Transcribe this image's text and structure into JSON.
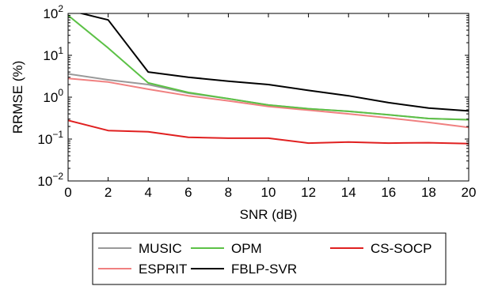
{
  "chart_data": {
    "type": "line",
    "title": "",
    "xlabel": "SNR (dB)",
    "ylabel": "RRMSE (%)",
    "x": [
      0,
      2,
      4,
      6,
      8,
      10,
      12,
      14,
      16,
      18,
      20
    ],
    "xlim": [
      0,
      20
    ],
    "ylim": [
      0.01,
      100
    ],
    "yscale": "log",
    "xticks": [
      "0",
      "2",
      "4",
      "6",
      "8",
      "10",
      "12",
      "14",
      "16",
      "18",
      "20"
    ],
    "yticks": [
      {
        "value": 0.01,
        "base": "10",
        "exp": "−2"
      },
      {
        "value": 0.1,
        "base": "10",
        "exp": "−1"
      },
      {
        "value": 1,
        "base": "10",
        "exp": "0"
      },
      {
        "value": 10,
        "base": "10",
        "exp": "1"
      },
      {
        "value": 100,
        "base": "10",
        "exp": "2"
      }
    ],
    "grid": false,
    "legend_position": "bottom",
    "series": [
      {
        "name": "MUSIC",
        "color": "#999999",
        "values": [
          3.6,
          2.6,
          2.0,
          1.25,
          0.92,
          0.65,
          0.53,
          0.46,
          0.38,
          0.31,
          0.29
        ]
      },
      {
        "name": "ESPRIT",
        "color": "#f08080",
        "values": [
          2.8,
          2.3,
          1.55,
          1.08,
          0.82,
          0.6,
          0.49,
          0.4,
          0.32,
          0.25,
          0.19
        ]
      },
      {
        "name": "OPM",
        "color": "#5cc146",
        "values": [
          90,
          15,
          2.2,
          1.3,
          0.92,
          0.65,
          0.53,
          0.46,
          0.38,
          0.31,
          0.29
        ]
      },
      {
        "name": "FBLP-SVR",
        "color": "#000000",
        "values": [
          120,
          70,
          4.0,
          3.0,
          2.4,
          2.0,
          1.45,
          1.08,
          0.74,
          0.55,
          0.47
        ]
      },
      {
        "name": "CS-SOCP",
        "color": "#e02020",
        "values": [
          0.28,
          0.16,
          0.15,
          0.11,
          0.105,
          0.105,
          0.08,
          0.085,
          0.08,
          0.082,
          0.078
        ]
      }
    ]
  }
}
